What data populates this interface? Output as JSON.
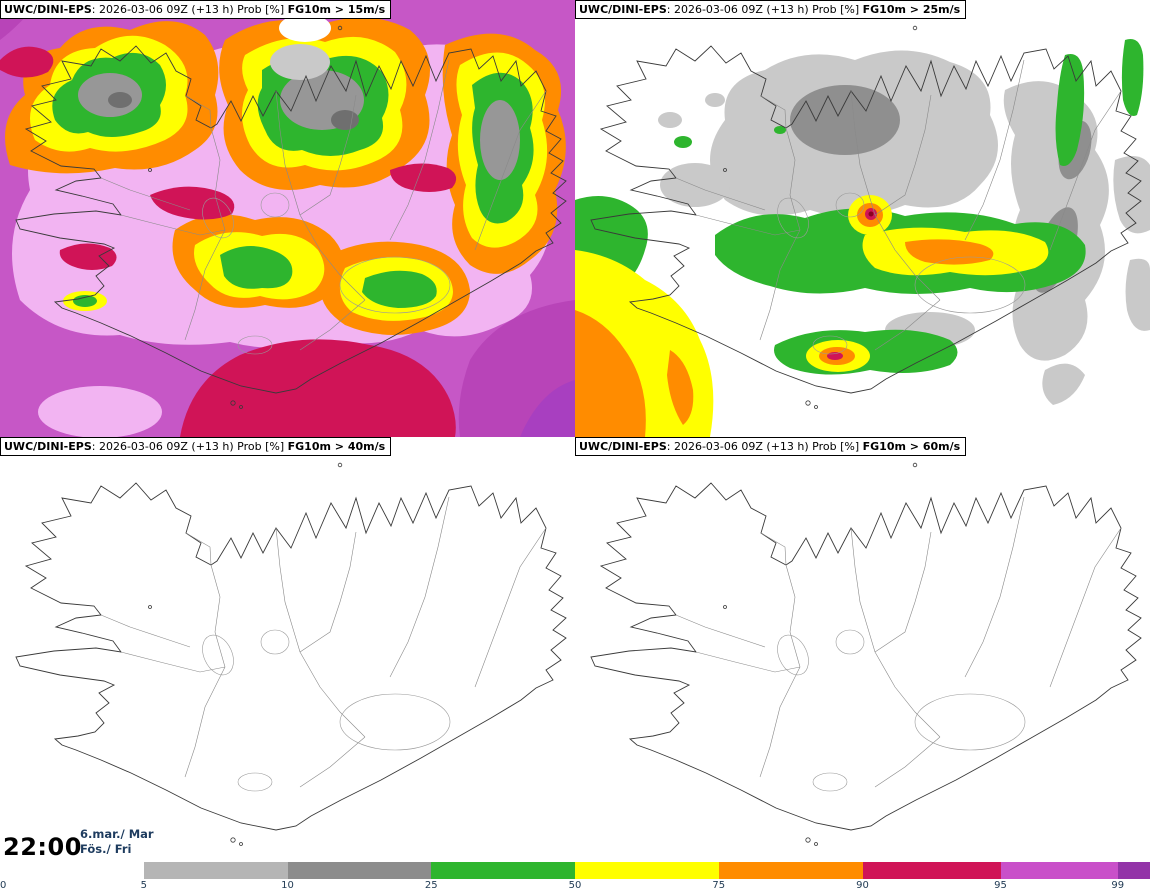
{
  "panels": [
    {
      "model": "UWC/DINI-EPS",
      "run_info": ": 2026-03-06 09Z (+13 h) Prob [%] ",
      "threshold": "FG10m > 15m/s"
    },
    {
      "model": "UWC/DINI-EPS",
      "run_info": ": 2026-03-06 09Z (+13 h) Prob [%] ",
      "threshold": "FG10m > 25m/s"
    },
    {
      "model": "UWC/DINI-EPS",
      "run_info": ": 2026-03-06 09Z (+13 h) Prob [%] ",
      "threshold": "FG10m > 40m/s"
    },
    {
      "model": "UWC/DINI-EPS",
      "run_info": ": 2026-03-06 09Z (+13 h) Prob [%] ",
      "threshold": "FG10m > 60m/s"
    }
  ],
  "footer": {
    "time": "22:00",
    "date": "6.mar./ Mar",
    "day": "Fös./ Fri"
  },
  "colorbar": {
    "unit": "Prob [%]",
    "labels": [
      "0",
      "5",
      "10",
      "25",
      "50",
      "75",
      "90",
      "95",
      "99"
    ],
    "colors": [
      "#ffffff",
      "#b5b5b5",
      "#8c8c8c",
      "#2eb52e",
      "#ffff00",
      "#ff8c00",
      "#d01457",
      "#c94fc9",
      "#9333a8"
    ],
    "stops": [
      0,
      12.5,
      25,
      37.5,
      50,
      62.5,
      75,
      87,
      97.2,
      100
    ]
  }
}
